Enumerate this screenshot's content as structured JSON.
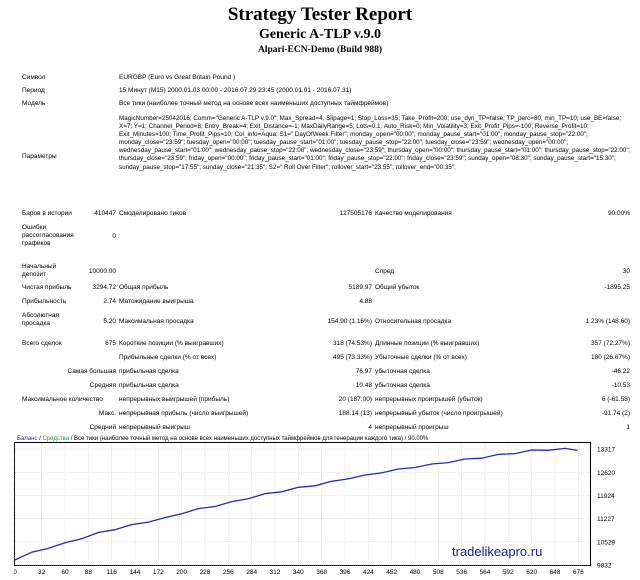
{
  "header": {
    "title": "Strategy Tester Report",
    "subtitle": "Generic A-TLP v.9.0",
    "server": "Alpari-ECN-Demo (Build 988)"
  },
  "info": {
    "symbol_label": "Символ",
    "symbol_value": "EURGBP (Euro vs Great Britain Pound )",
    "period_label": "Период",
    "period_value": "15 Минут (M15) 2000.01.03 00:00 - 2016.07.29 23:45 (2000.01.01 - 2016.07.31)",
    "model_label": "Модель",
    "model_value": "Все тики (наиболее точный метод на основе всех наименьших доступных таймфреймов)",
    "params_label": "Параметры",
    "params_value": "MagicNumber=25042016; Comm=\"Generic A-TLP v.9.0\"; Max_Spread=4; Slipage=1; Stop_Loss=35; Take_Profit=200; use_dyn_TP=false; TP_perc=80; min_TP=10; use_BE=false; X=7; Y=1; Channel_Period=8; Entry_Break=4; Exit_Distance=-1; MaxDailyRange=5; Lots=0.1; Auto_Risk=0; Min_Volatility=3; Exit_Profit_Pips=-100; Reverse_Profit=10; Exit_Minutes=100; Time_Profit_Pips=10; Col_info=Aqua; S1=\" DayOfWeek Filter\"; monday_open=\"00:00\"; monday_pause_start=\"01:00\"; monday_pause_stop=\"22:00\"; monday_close=\"23:59\"; tuesday_open=\"00:00\"; tuesday_pause_start=\"01:00\"; tuesday_pause_stop=\"22:00\"; tuesday_close=\"23:59\"; wednesday_open=\"00:00\"; wednesday_pause_start=\"01:00\"; wednesday_pause_stop=\"22:00\"; wednesday_close=\"23:59\"; thursday_open=\"00:00\"; thursday_pause_start=\"01:00\"; thursday_pause_stop=\"22:00\"; thursday_close=\"23:59\"; friday_open=\"00:00\"; friday_pause_start=\"01:00\"; friday_pause_stop=\"22:00\"; friday_close=\"23:59\"; sunday_open=\"08:30\"; sunday_pause_start=\"15:30\"; sunday_pause_stop=\"17:55\"; sunday_close=\"21:35\"; S2=\" Roll Over Filter\"; rollover_start=\"23:55\"; rollover_end=\"00:35\";",
    "bars_label": "Баров в истории",
    "bars_value": "410447",
    "ticks_label": "Смоделировано тиков",
    "ticks_value": "127505176",
    "quality_label": "Качество моделирования",
    "quality_value": "90.00%",
    "errors_label": "Ошибки рассогласования графиков",
    "errors_value": "0"
  },
  "stats": {
    "deposit_label": "Начальный депозит",
    "deposit_value": "10000.00",
    "spread_label": "Спред",
    "spread_value": "30",
    "netprofit_label": "Чистая прибыль",
    "netprofit_value": "3294.72",
    "grossprofit_label": "Общая прибыль",
    "grossprofit_value": "5189.97",
    "grossloss_label": "Общий убыток",
    "grossloss_value": "-1895.25",
    "pf_label": "Прибыльность",
    "pf_value": "2.74",
    "expected_label": "Матожидание выигрыша",
    "expected_value": "4.88",
    "absdd_label": "Абсолютная просадка",
    "absdd_value": "5.20",
    "maxdd_label": "Максимальная просадка",
    "maxdd_value": "154.90 (1.16%)",
    "reldd_label": "Относительная просадка",
    "reldd_value": "1.23% (148.60)",
    "trades_label": "Всего сделок",
    "trades_value": "675",
    "short_label": "Короткие позиции (% выигравших)",
    "short_value": "318 (74.53%)",
    "long_label": "Длинные позиции (% выигравших)",
    "long_value": "357 (72.27%)",
    "profitt_label": "Прибыльные сделки (% от всех)",
    "profitt_value": "495 (73.33%)",
    "losst_label": "Убыточные сделки (% от всех)",
    "losst_value": "180 (26.67%)",
    "largest_label": "Самая большая",
    "largest_p_label": "прибыльная сделка",
    "largest_p_value": "76.97",
    "largest_l_label": "убыточная сделка",
    "largest_l_value": "-46.22",
    "average_label": "Средняя",
    "average_p_label": "прибыльная сделка",
    "average_p_value": "10.48",
    "average_l_label": "убыточная сделка",
    "average_l_value": "-10.53",
    "maxcons_label": "Максимальное количество",
    "maxcons_w_label": "непрерывных выигрышей (прибыль)",
    "maxcons_w_value": "20 (187.00)",
    "maxcons_l_label": "непрерывных проигрышей (убыток)",
    "maxcons_l_value": "6 (-61.58)",
    "max_label": "Макс.",
    "max_p_label": "непрерывная прибыль (число выигрышей)",
    "max_p_value": "188.14 (13)",
    "max_l_label": "непрерывный убыток (число проигрышей)",
    "max_l_value": "-91.74 (2)",
    "avgcons_label": "Средний",
    "avgcons_w_label": "непрерывный выигрыш",
    "avgcons_w_value": "4",
    "avgcons_l_label": "непрерывный проигрыш",
    "avgcons_l_value": "1"
  },
  "chart_legend": {
    "balance": "Баланс",
    "sep1": " / ",
    "equity": "Средства",
    "rest": " / Все тики (наиболее точный метод на основе всех наименьших доступных таймфреймов для генерации каждого тика) / 90.00%"
  },
  "watermark": "tradelikeapro.ru",
  "colors": {
    "balance": "#1f2fb4",
    "equity": "#1ea01e",
    "grid": "#c8c8c8",
    "frame": "#000000"
  },
  "chart_data": {
    "type": "line",
    "x_ticks": [
      0,
      32,
      60,
      88,
      116,
      144,
      172,
      200,
      228,
      256,
      284,
      312,
      340,
      368,
      396,
      424,
      452,
      480,
      508,
      536,
      564,
      592,
      620,
      648,
      676
    ],
    "y_ticks": [
      9832,
      10529,
      11227,
      11924,
      12620,
      13317
    ],
    "xlim": [
      0,
      690
    ],
    "ylim": [
      9832,
      13500
    ],
    "series": [
      {
        "name": "Баланс",
        "x": [
          0,
          20,
          40,
          60,
          80,
          100,
          120,
          140,
          160,
          180,
          200,
          220,
          240,
          260,
          280,
          300,
          320,
          340,
          360,
          380,
          400,
          420,
          440,
          460,
          480,
          500,
          520,
          540,
          560,
          580,
          600,
          620,
          640,
          660,
          675
        ],
        "values": [
          10000,
          10200,
          10350,
          10480,
          10640,
          10790,
          10910,
          11030,
          11140,
          11240,
          11390,
          11510,
          11610,
          11720,
          11840,
          11960,
          12050,
          12150,
          12230,
          12330,
          12440,
          12520,
          12620,
          12700,
          12780,
          12850,
          12930,
          13000,
          13060,
          13140,
          13200,
          13270,
          13300,
          13320,
          13295
        ]
      }
    ],
    "grid": true,
    "legend": "top-left"
  }
}
